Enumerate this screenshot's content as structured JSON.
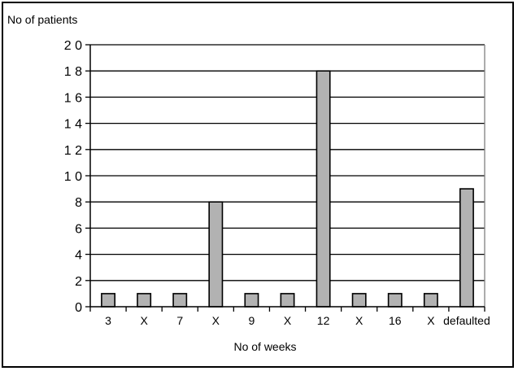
{
  "chart_data": {
    "type": "bar",
    "ylabel": "No of patients",
    "xlabel": "No of weeks",
    "categories": [
      "3",
      "X",
      "7",
      "X",
      "9",
      "X",
      "12",
      "X",
      "16",
      "X",
      "defaulted"
    ],
    "values": [
      1,
      1,
      1,
      8,
      1,
      1,
      18,
      1,
      1,
      1,
      9
    ],
    "ylim": [
      0,
      20
    ],
    "yticks": [
      0,
      2,
      4,
      6,
      8,
      10,
      12,
      14,
      16,
      18,
      20
    ],
    "ytick_labels": [
      "0",
      "2",
      "4",
      "6",
      "8",
      "1 0",
      "1 2",
      "1 4",
      "1 6",
      "1 8",
      "2 0"
    ],
    "grid": true,
    "bar_color": "#b2b2b2",
    "grid_color": "#000000"
  }
}
